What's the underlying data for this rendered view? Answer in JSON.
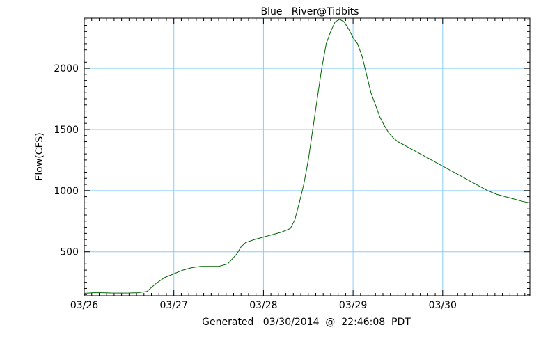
{
  "chart_data": {
    "type": "line",
    "title": "Blue   River@Tidbits",
    "ylabel": "Flow(CFS)",
    "footer": "Generated   03/30/2014  @  22:46:08  PDT",
    "x_tick_labels": [
      "03/26",
      "03/27",
      "03/28",
      "03/29",
      "03/30"
    ],
    "y_tick_values": [
      500,
      1000,
      1500,
      2000
    ],
    "x_unit": "days",
    "xlim_days": [
      0,
      4.97
    ],
    "ylim": [
      140,
      2410
    ],
    "grid": true,
    "series": [
      {
        "color": "#006400",
        "x_days": [
          0,
          0.1,
          0.2,
          0.3,
          0.4,
          0.5,
          0.6,
          0.7,
          0.8,
          0.9,
          1.0,
          1.1,
          1.2,
          1.3,
          1.4,
          1.5,
          1.6,
          1.7,
          1.75,
          1.8,
          1.9,
          2.0,
          2.1,
          2.2,
          2.3,
          2.35,
          2.4,
          2.45,
          2.5,
          2.55,
          2.6,
          2.65,
          2.7,
          2.75,
          2.8,
          2.85,
          2.9,
          2.95,
          3.0,
          3.05,
          3.1,
          3.15,
          3.2,
          3.25,
          3.3,
          3.35,
          3.4,
          3.45,
          3.5,
          3.55,
          3.6,
          3.7,
          3.8,
          3.9,
          4.0,
          4.1,
          4.2,
          4.3,
          4.4,
          4.5,
          4.6,
          4.7,
          4.8,
          4.9,
          4.97
        ],
        "values": [
          160,
          165,
          165,
          163,
          162,
          163,
          165,
          175,
          240,
          290,
          320,
          350,
          370,
          380,
          380,
          380,
          400,
          480,
          540,
          575,
          600,
          620,
          640,
          660,
          690,
          760,
          900,
          1050,
          1250,
          1500,
          1750,
          2000,
          2200,
          2300,
          2380,
          2400,
          2380,
          2320,
          2250,
          2200,
          2100,
          1950,
          1800,
          1700,
          1600,
          1530,
          1470,
          1430,
          1400,
          1380,
          1360,
          1320,
          1280,
          1240,
          1200,
          1160,
          1120,
          1080,
          1040,
          1000,
          970,
          950,
          930,
          910,
          900
        ]
      }
    ]
  }
}
